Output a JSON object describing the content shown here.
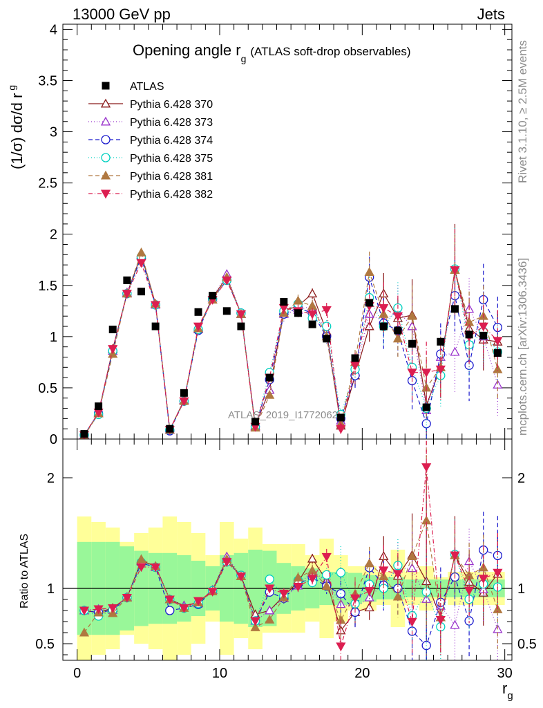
{
  "header": {
    "left": "13000 GeV pp",
    "right": "Jets"
  },
  "side_labels": {
    "rivet": "Rivet 3.1.10, ≥ 2.5M events",
    "mcplots": "mcplots.cern.ch [arXiv:1306.3436]"
  },
  "chart_data": {
    "type": "scatter",
    "title": "Opening angle r",
    "title_sub": "g",
    "title_suffix": "(ATLAS soft-drop observables)",
    "watermark": "ATLAS_2019_I1772062",
    "ylabel_main": "(1/σ) dσ/d r",
    "ylabel_main_sub": "g",
    "ylabel_ratio": "Ratio to ATLAS",
    "xlabel": "r",
    "xlabel_sub": "g",
    "xlim": [
      -1,
      30.5
    ],
    "ylim_main": [
      0,
      4.05
    ],
    "ylim_ratio": [
      0.35,
      2.35
    ],
    "x_ticks": [
      0,
      10,
      20,
      30
    ],
    "y_ticks_main": [
      0,
      0.5,
      1,
      1.5,
      2,
      2.5,
      3,
      3.5,
      4
    ],
    "y_ticks_main_labels": [
      "0",
      "0.5",
      "1",
      "1.5",
      "2",
      "2.5",
      "3",
      "3.5",
      "4"
    ],
    "y_ticks_ratio": [
      0.5,
      1,
      2
    ],
    "y_ticks_ratio_labels": [
      "0.5",
      "1",
      "2"
    ],
    "x": [
      0.5,
      1.5,
      2.5,
      3.5,
      4.5,
      5.5,
      6.5,
      7.5,
      8.5,
      9.5,
      10.5,
      11.5,
      12.5,
      13.5,
      14.5,
      15.5,
      16.5,
      17.5,
      18.5,
      19.5,
      20.5,
      21.5,
      22.5,
      23.5,
      24.5,
      25.5,
      26.5,
      27.5,
      28.5,
      29.5
    ],
    "data": {
      "name": "ATLAS",
      "values": [
        0.05,
        0.32,
        1.07,
        1.55,
        1.44,
        1.1,
        0.1,
        0.45,
        1.24,
        1.4,
        1.25,
        1.1,
        0.17,
        0.6,
        1.34,
        1.23,
        1.12,
        0.98,
        0.21,
        0.79,
        1.33,
        1.1,
        1.06,
        0.93,
        0.31,
        0.95,
        1.27,
        1.02,
        1.01,
        0.84
      ],
      "band_inner": [
        0.42,
        0.42,
        0.42,
        0.38,
        0.34,
        0.32,
        0.32,
        0.3,
        0.25,
        0.2,
        0.3,
        0.32,
        0.35,
        0.34,
        0.23,
        0.2,
        0.18,
        0.15,
        0.15,
        0.14,
        0.12,
        0.1,
        0.1,
        0.08,
        0.08,
        0.08,
        0.08,
        0.08,
        0.08,
        0.08
      ],
      "band_outer": [
        0.65,
        0.6,
        0.55,
        0.42,
        0.5,
        0.55,
        0.65,
        0.6,
        0.5,
        0.3,
        0.6,
        0.45,
        0.55,
        0.4,
        0.4,
        0.4,
        0.3,
        0.45,
        0.3,
        0.2,
        0.2,
        0.15,
        0.35,
        0.15,
        0.2,
        0.1,
        0.15,
        0.15,
        0.15,
        0.15
      ]
    },
    "series": [
      {
        "name": "Pythia 6.428 370",
        "color": "#8b1a1a",
        "marker": "triangle-up-open",
        "dash": "solid",
        "values": [
          0.04,
          0.25,
          0.88,
          1.42,
          1.8,
          1.32,
          0.09,
          0.38,
          1.08,
          1.38,
          1.58,
          1.22,
          0.13,
          0.48,
          1.25,
          1.3,
          1.42,
          1.05,
          0.13,
          0.62,
          1.1,
          1.42,
          1.18,
          1.21,
          0.33,
          0.7,
          1.65,
          1.08,
          0.97,
          0.95
        ],
        "errors": [
          0,
          0,
          0,
          0,
          0,
          0,
          0,
          0,
          0,
          0,
          0,
          0,
          0,
          0,
          0.05,
          0.05,
          0.05,
          0.05,
          0.03,
          0.1,
          0.15,
          0.2,
          0.2,
          0.35,
          0.3,
          0.3,
          0.45,
          0.3,
          0.3,
          0.3
        ]
      },
      {
        "name": "Pythia 6.428 373",
        "color": "#9932cc",
        "marker": "triangle-up-open",
        "dash": "1,3",
        "values": [
          0.04,
          0.26,
          0.86,
          1.43,
          1.79,
          1.31,
          0.09,
          0.38,
          1.07,
          1.38,
          1.61,
          1.22,
          0.12,
          0.48,
          1.22,
          1.26,
          1.3,
          1.04,
          0.18,
          0.65,
          1.22,
          1.15,
          1.25,
          1.1,
          0.28,
          0.8,
          0.85,
          1.27,
          1.0,
          0.53
        ],
        "errors": [
          0,
          0,
          0,
          0,
          0,
          0,
          0,
          0,
          0,
          0,
          0,
          0,
          0,
          0,
          0.05,
          0.05,
          0.06,
          0.06,
          0.05,
          0.12,
          0.2,
          0.25,
          0.25,
          0.3,
          0.3,
          0.3,
          0.4,
          0.3,
          0.3,
          0.3
        ]
      },
      {
        "name": "Pythia 6.428 374",
        "color": "#1a1acd",
        "marker": "circle-open",
        "dash": "6,4",
        "values": [
          0.04,
          0.25,
          0.86,
          1.42,
          1.77,
          1.31,
          0.08,
          0.37,
          1.06,
          1.37,
          1.55,
          1.23,
          0.12,
          0.58,
          1.22,
          1.28,
          1.23,
          1.0,
          0.2,
          0.62,
          1.58,
          1.13,
          1.06,
          0.57,
          0.15,
          0.83,
          1.4,
          0.72,
          1.36,
          1.09
        ],
        "errors": [
          0,
          0,
          0,
          0,
          0,
          0,
          0,
          0,
          0,
          0,
          0,
          0,
          0,
          0,
          0.07,
          0.06,
          0.06,
          0.07,
          0.05,
          0.12,
          0.2,
          0.25,
          0.25,
          0.3,
          0.3,
          0.3,
          0.35,
          0.35,
          0.35,
          0.3
        ]
      },
      {
        "name": "Pythia 6.428 375",
        "color": "#00d0c0",
        "marker": "circle-open",
        "dash": "1,3",
        "values": [
          0.04,
          0.24,
          0.86,
          1.42,
          1.78,
          1.31,
          0.09,
          0.37,
          1.07,
          1.37,
          1.55,
          1.23,
          0.12,
          0.65,
          1.25,
          1.32,
          1.18,
          1.1,
          0.24,
          0.68,
          1.38,
          1.1,
          1.28,
          0.7,
          0.3,
          0.62,
          1.66,
          0.92,
          1.05,
          0.85
        ],
        "errors": [
          0,
          0,
          0,
          0,
          0,
          0,
          0,
          0,
          0,
          0,
          0,
          0,
          0,
          0,
          0.06,
          0.06,
          0.07,
          0.06,
          0.05,
          0.12,
          0.2,
          0.2,
          0.25,
          0.3,
          0.3,
          0.3,
          0.4,
          0.3,
          0.3,
          0.3
        ]
      },
      {
        "name": "Pythia 6.428 381",
        "color": "#b07840",
        "marker": "triangle-up-filled",
        "dash": "6,4",
        "values": [
          0.03,
          0.25,
          0.83,
          1.42,
          1.82,
          1.32,
          0.09,
          0.37,
          1.08,
          1.36,
          1.58,
          1.22,
          0.11,
          0.43,
          1.23,
          1.35,
          1.3,
          1.0,
          0.15,
          0.75,
          1.63,
          1.22,
          0.98,
          1.2,
          0.5,
          0.7,
          1.65,
          1.14,
          1.2,
          0.68
        ],
        "errors": [
          0,
          0,
          0,
          0,
          0,
          0,
          0,
          0,
          0,
          0,
          0,
          0,
          0,
          0,
          0.07,
          0.06,
          0.06,
          0.06,
          0.04,
          0.12,
          0.2,
          0.2,
          0.2,
          0.3,
          0.3,
          0.3,
          0.35,
          0.3,
          0.3,
          0.3
        ]
      },
      {
        "name": "Pythia 6.428 382",
        "color": "#dc1e50",
        "marker": "triangle-down-filled",
        "dash": "6,3,1,3",
        "values": [
          0.04,
          0.26,
          0.88,
          1.42,
          1.72,
          1.31,
          0.09,
          0.37,
          1.1,
          1.36,
          1.55,
          1.22,
          0.12,
          0.6,
          1.28,
          1.25,
          1.22,
          1.26,
          0.1,
          0.72,
          1.3,
          1.28,
          1.2,
          0.65,
          0.65,
          0.68,
          1.65,
          1.0,
          1.1,
          0.96
        ],
        "errors": [
          0,
          0,
          0,
          0,
          0,
          0,
          0,
          0,
          0,
          0,
          0,
          0,
          0,
          0,
          0.06,
          0.06,
          0.06,
          0.07,
          0.05,
          0.12,
          0.2,
          0.25,
          0.2,
          0.3,
          0.3,
          0.3,
          0.4,
          0.3,
          0.3,
          0.3
        ]
      }
    ]
  }
}
